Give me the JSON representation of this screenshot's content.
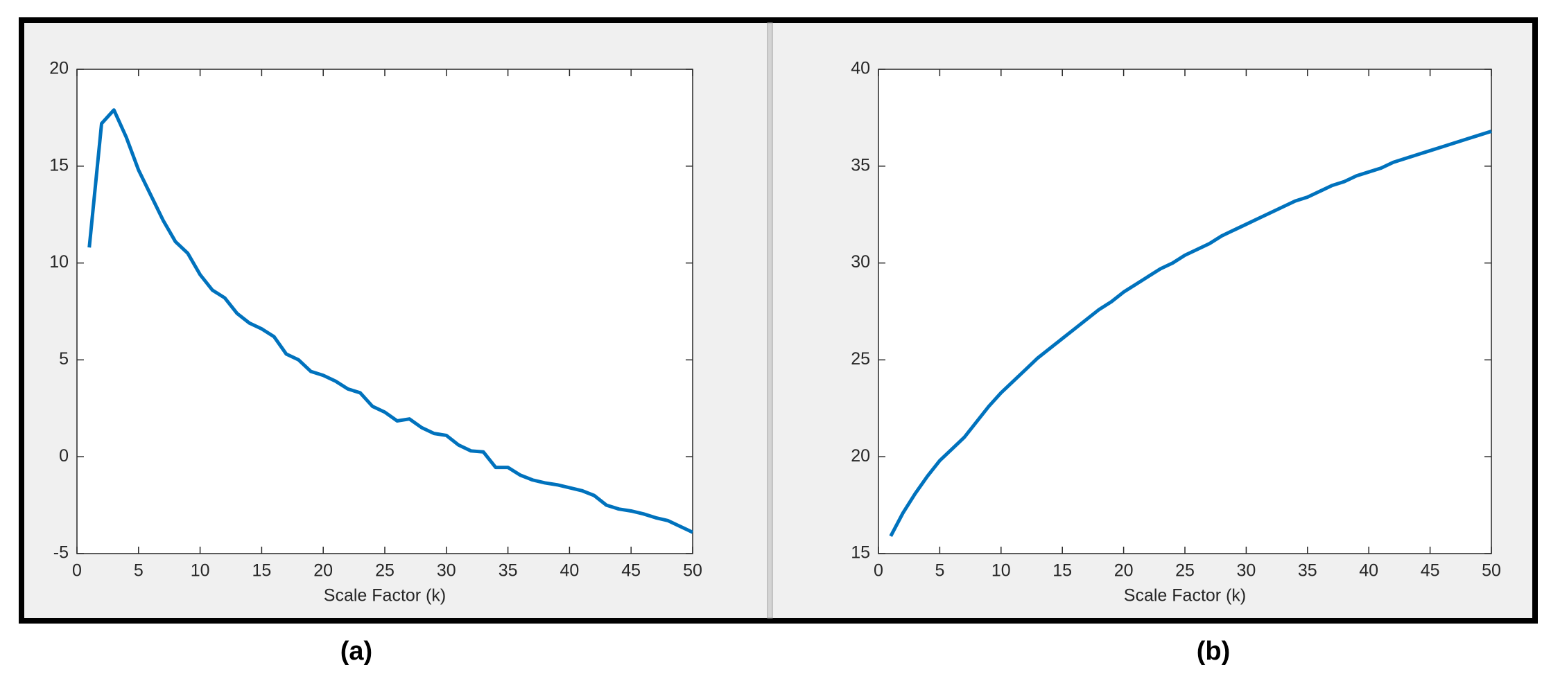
{
  "chart_data": [
    {
      "type": "line",
      "caption": "(a)",
      "xlabel": "Scale Factor (k)",
      "x": [
        1,
        2,
        3,
        4,
        5,
        6,
        7,
        8,
        9,
        10,
        11,
        12,
        13,
        14,
        15,
        16,
        17,
        18,
        19,
        20,
        21,
        22,
        23,
        24,
        25,
        26,
        27,
        28,
        29,
        30,
        31,
        32,
        33,
        34,
        35,
        36,
        37,
        38,
        39,
        40,
        41,
        42,
        43,
        44,
        45,
        46,
        47,
        48,
        49,
        50
      ],
      "values": [
        10.8,
        17.2,
        17.9,
        16.5,
        14.8,
        13.5,
        12.2,
        11.1,
        10.5,
        9.4,
        8.6,
        8.2,
        7.4,
        6.9,
        6.6,
        6.2,
        5.3,
        5.0,
        4.4,
        4.2,
        3.9,
        3.5,
        3.3,
        2.6,
        2.3,
        1.85,
        1.95,
        1.5,
        1.2,
        1.1,
        0.6,
        0.3,
        0.25,
        -0.55,
        -0.55,
        -0.95,
        -1.2,
        -1.35,
        -1.45,
        -1.6,
        -1.75,
        -2.0,
        -2.5,
        -2.7,
        -2.8,
        -2.95,
        -3.15,
        -3.3,
        -3.6,
        -3.9
      ],
      "color": "#0072bd",
      "xlim": [
        0,
        50
      ],
      "xticks": [
        0,
        5,
        10,
        15,
        20,
        25,
        30,
        35,
        40,
        45,
        50
      ],
      "ylim": [
        -5,
        20
      ],
      "yticks": [
        -5,
        0,
        5,
        10,
        15,
        20
      ]
    },
    {
      "type": "line",
      "caption": "(b)",
      "xlabel": "Scale Factor (k)",
      "x": [
        1,
        2,
        3,
        4,
        5,
        6,
        7,
        8,
        9,
        10,
        11,
        12,
        13,
        14,
        15,
        16,
        17,
        18,
        19,
        20,
        21,
        22,
        23,
        24,
        25,
        26,
        27,
        28,
        29,
        30,
        31,
        32,
        33,
        34,
        35,
        36,
        37,
        38,
        39,
        40,
        41,
        42,
        43,
        44,
        45,
        46,
        47,
        48,
        49,
        50
      ],
      "values": [
        15.9,
        17.1,
        18.1,
        19.0,
        19.8,
        20.4,
        21.0,
        21.8,
        22.6,
        23.3,
        23.9,
        24.5,
        25.1,
        25.6,
        26.1,
        26.6,
        27.1,
        27.6,
        28.0,
        28.5,
        28.9,
        29.3,
        29.7,
        30.0,
        30.4,
        30.7,
        31.0,
        31.4,
        31.7,
        32.0,
        32.3,
        32.6,
        32.9,
        33.2,
        33.4,
        33.7,
        34.0,
        34.2,
        34.5,
        34.7,
        34.9,
        35.2,
        35.4,
        35.6,
        35.8,
        36.0,
        36.2,
        36.4,
        36.6,
        36.8
      ],
      "color": "#0072bd",
      "xlim": [
        0,
        50
      ],
      "xticks": [
        0,
        5,
        10,
        15,
        20,
        25,
        30,
        35,
        40,
        45,
        50
      ],
      "ylim": [
        15,
        40
      ],
      "yticks": [
        15,
        20,
        25,
        30,
        35,
        40
      ]
    }
  ]
}
